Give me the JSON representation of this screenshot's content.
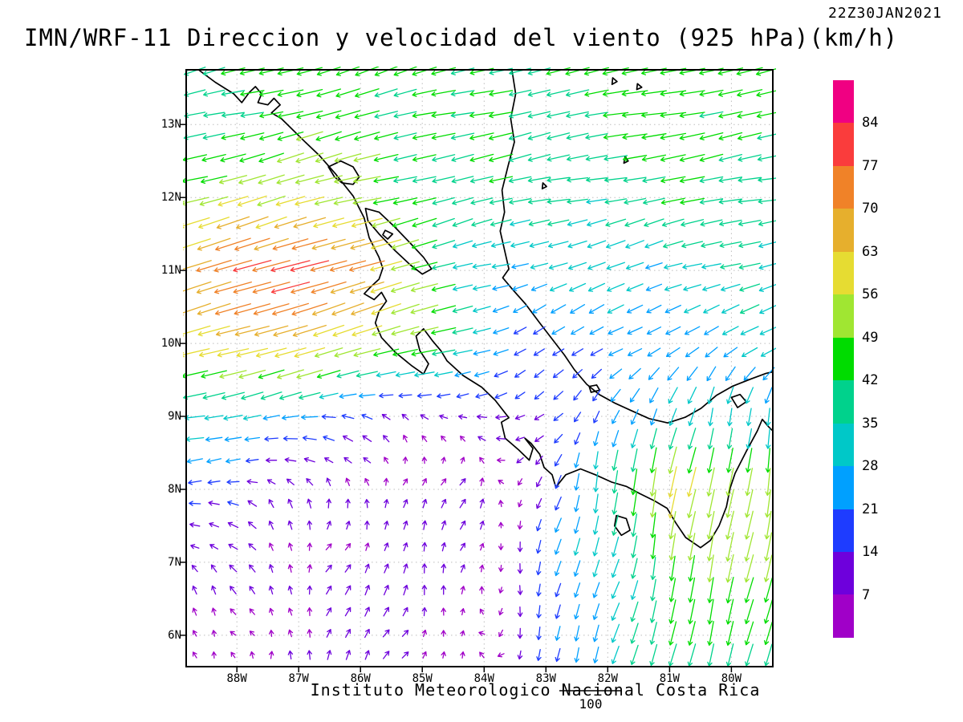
{
  "header": {
    "title": "IMN/WRF-11 Direccion y velocidad del viento (925 hPa)(km/h)",
    "timestamp": "22Z30JAN2021"
  },
  "footer": {
    "credit": "Instituto Meteorologico Nacional Costa Rica",
    "reference_label": "100"
  },
  "axes": {
    "lat_labels": [
      "13N",
      "12N",
      "11N",
      "10N",
      "9N",
      "8N",
      "7N",
      "6N"
    ],
    "lat_values": [
      13,
      12,
      11,
      10,
      9,
      8,
      7,
      6
    ],
    "lon_labels": [
      "88W",
      "87W",
      "86W",
      "85W",
      "84W",
      "83W",
      "82W",
      "81W",
      "80W"
    ],
    "lon_values": [
      -88,
      -87,
      -86,
      -85,
      -84,
      -83,
      -82,
      -81,
      -80
    ],
    "lon_range": [
      -88.82,
      -79.33
    ],
    "lat_range": [
      5.57,
      13.75
    ]
  },
  "colorbar": {
    "labels": [
      "84",
      "77",
      "70",
      "63",
      "56",
      "49",
      "42",
      "35",
      "28",
      "21",
      "14",
      "7"
    ]
  },
  "chart_data": {
    "type": "quiver",
    "title": "IMN/WRF-11 Direccion y velocidad del viento (925 hPa)(km/h)",
    "valid_time": "22Z30JAN2021",
    "units": "km/h",
    "level_hpa": 925,
    "legend_position": "right",
    "speed_levels": [
      7,
      14,
      21,
      28,
      35,
      42,
      49,
      56,
      63,
      70,
      77,
      84
    ],
    "palette_low_to_high": [
      "#a000c8",
      "#6e00dc",
      "#1e3cff",
      "#00a0ff",
      "#00c8c8",
      "#00d28c",
      "#00dc00",
      "#a0e632",
      "#e6dc32",
      "#e6af2d",
      "#f08228",
      "#fa3c3c",
      "#f00082"
    ],
    "reference_arrow_kmh": 100,
    "grid": {
      "lons": [
        -89,
        -88,
        -87,
        -86,
        -85,
        -84,
        -83,
        -82,
        -81,
        -80,
        -79
      ],
      "lats_top_to_bottom": [
        14,
        13,
        12,
        11,
        10,
        9,
        8,
        7,
        6,
        5
      ],
      "uv": [
        [
          [
            -40,
            -10
          ],
          [
            -42,
            -10
          ],
          [
            -44,
            -12
          ],
          [
            -42,
            -12
          ],
          [
            -40,
            -12
          ],
          [
            -40,
            -10
          ],
          [
            -42,
            -8
          ],
          [
            -44,
            -8
          ],
          [
            -48,
            -10
          ],
          [
            -46,
            -10
          ],
          [
            -44,
            -10
          ]
        ],
        [
          [
            -36,
            -8
          ],
          [
            -40,
            -9
          ],
          [
            -44,
            -11
          ],
          [
            -45,
            -12
          ],
          [
            -42,
            -10
          ],
          [
            -40,
            -8
          ],
          [
            -40,
            -8
          ],
          [
            -42,
            -8
          ],
          [
            -44,
            -8
          ],
          [
            -44,
            -8
          ],
          [
            -42,
            -8
          ]
        ],
        [
          [
            -45,
            -12
          ],
          [
            -55,
            -16
          ],
          [
            -54,
            -15
          ],
          [
            -48,
            -13
          ],
          [
            -42,
            -10
          ],
          [
            -38,
            -8
          ],
          [
            -36,
            -8
          ],
          [
            -38,
            -7
          ],
          [
            -40,
            -7
          ],
          [
            -40,
            -7
          ],
          [
            -38,
            -7
          ]
        ],
        [
          [
            -62,
            -18
          ],
          [
            -72,
            -22
          ],
          [
            -80,
            -24
          ],
          [
            -70,
            -20
          ],
          [
            -45,
            -12
          ],
          [
            -30,
            -8
          ],
          [
            -26,
            -10
          ],
          [
            -28,
            -10
          ],
          [
            -30,
            -10
          ],
          [
            -32,
            -10
          ],
          [
            -32,
            -10
          ]
        ],
        [
          [
            -60,
            -17
          ],
          [
            -62,
            -18
          ],
          [
            -60,
            -18
          ],
          [
            -55,
            -16
          ],
          [
            -50,
            -15
          ],
          [
            -26,
            -8
          ],
          [
            -16,
            -8
          ],
          [
            -18,
            -12
          ],
          [
            -22,
            -14
          ],
          [
            -25,
            -12
          ],
          [
            -28,
            -11
          ]
        ],
        [
          [
            -35,
            -6
          ],
          [
            -32,
            -5
          ],
          [
            -25,
            -3
          ],
          [
            -12,
            2
          ],
          [
            -8,
            4
          ],
          [
            -8,
            2
          ],
          [
            -12,
            -10
          ],
          [
            -10,
            -20
          ],
          [
            -8,
            -26
          ],
          [
            -6,
            -30
          ],
          [
            -5,
            -32
          ]
        ],
        [
          [
            -16,
            0
          ],
          [
            -12,
            2
          ],
          [
            -6,
            6
          ],
          [
            2,
            8
          ],
          [
            4,
            8
          ],
          [
            2,
            6
          ],
          [
            -4,
            -15
          ],
          [
            -6,
            -35
          ],
          [
            -12,
            -62
          ],
          [
            -10,
            -55
          ],
          [
            -6,
            -48
          ]
        ],
        [
          [
            -8,
            4
          ],
          [
            -5,
            6
          ],
          [
            0,
            8
          ],
          [
            4,
            10
          ],
          [
            4,
            8
          ],
          [
            0,
            5
          ],
          [
            -5,
            -18
          ],
          [
            -8,
            -30
          ],
          [
            -8,
            -45
          ],
          [
            -10,
            -50
          ],
          [
            -10,
            -48
          ]
        ],
        [
          [
            -5,
            3
          ],
          [
            -3,
            5
          ],
          [
            2,
            8
          ],
          [
            4,
            8
          ],
          [
            3,
            6
          ],
          [
            0,
            4
          ],
          [
            -5,
            -20
          ],
          [
            -8,
            -28
          ],
          [
            -10,
            -38
          ],
          [
            -12,
            -42
          ],
          [
            -12,
            -40
          ]
        ],
        [
          [
            -4,
            3
          ],
          [
            -2,
            4
          ],
          [
            2,
            6
          ],
          [
            3,
            6
          ],
          [
            2,
            5
          ],
          [
            0,
            4
          ],
          [
            -5,
            -18
          ],
          [
            -8,
            -26
          ],
          [
            -10,
            -36
          ],
          [
            -12,
            -40
          ],
          [
            -12,
            -38
          ]
        ]
      ]
    }
  },
  "map": {
    "coastlines": [
      [
        [
          -88.62,
          13.75
        ],
        [
          -88.35,
          13.58
        ],
        [
          -88.05,
          13.42
        ],
        [
          -87.92,
          13.3
        ],
        [
          -87.8,
          13.44
        ],
        [
          -87.7,
          13.52
        ],
        [
          -87.6,
          13.42
        ],
        [
          -87.66,
          13.3
        ],
        [
          -87.5,
          13.27
        ],
        [
          -87.4,
          13.36
        ],
        [
          -87.3,
          13.27
        ],
        [
          -87.44,
          13.16
        ],
        [
          -87.28,
          13.08
        ],
        [
          -87.16,
          12.98
        ],
        [
          -86.92,
          12.78
        ],
        [
          -86.66,
          12.57
        ],
        [
          -86.4,
          12.32
        ],
        [
          -86.12,
          12.02
        ],
        [
          -85.94,
          11.72
        ],
        [
          -85.86,
          11.45
        ],
        [
          -85.7,
          11.18
        ],
        [
          -85.64,
          11.03
        ],
        [
          -85.7,
          10.88
        ],
        [
          -85.84,
          10.77
        ],
        [
          -85.94,
          10.68
        ],
        [
          -85.78,
          10.6
        ],
        [
          -85.66,
          10.7
        ],
        [
          -85.58,
          10.58
        ],
        [
          -85.7,
          10.44
        ],
        [
          -85.76,
          10.28
        ],
        [
          -85.66,
          10.08
        ],
        [
          -85.44,
          9.88
        ],
        [
          -85.18,
          9.7
        ],
        [
          -84.98,
          9.58
        ],
        [
          -84.9,
          9.72
        ],
        [
          -85.04,
          9.9
        ],
        [
          -85.1,
          10.1
        ],
        [
          -84.98,
          10.2
        ],
        [
          -84.84,
          10.04
        ],
        [
          -84.7,
          9.9
        ],
        [
          -84.6,
          9.76
        ],
        [
          -84.34,
          9.56
        ],
        [
          -84.04,
          9.4
        ],
        [
          -83.82,
          9.22
        ],
        [
          -83.6,
          8.98
        ],
        [
          -83.72,
          8.92
        ],
        [
          -83.66,
          8.7
        ],
        [
          -83.44,
          8.54
        ],
        [
          -83.27,
          8.4
        ],
        [
          -83.21,
          8.56
        ],
        [
          -83.34,
          8.7
        ],
        [
          -83.24,
          8.63
        ],
        [
          -83.1,
          8.48
        ],
        [
          -83.03,
          8.3
        ],
        [
          -82.9,
          8.2
        ],
        [
          -82.84,
          8.03
        ],
        [
          -82.68,
          8.2
        ],
        [
          -82.44,
          8.28
        ],
        [
          -82.2,
          8.2
        ],
        [
          -81.94,
          8.1
        ],
        [
          -81.7,
          8.04
        ],
        [
          -81.48,
          7.94
        ],
        [
          -81.24,
          7.84
        ],
        [
          -81.04,
          7.74
        ],
        [
          -80.9,
          7.54
        ],
        [
          -80.74,
          7.34
        ],
        [
          -80.5,
          7.2
        ],
        [
          -80.34,
          7.3
        ],
        [
          -80.2,
          7.5
        ],
        [
          -80.08,
          7.76
        ],
        [
          -80.02,
          8.02
        ],
        [
          -79.94,
          8.22
        ],
        [
          -79.76,
          8.52
        ],
        [
          -79.58,
          8.8
        ],
        [
          -79.5,
          8.96
        ],
        [
          -79.4,
          8.86
        ],
        [
          -79.33,
          8.8
        ]
      ],
      [
        [
          -83.55,
          13.75
        ],
        [
          -83.49,
          13.42
        ],
        [
          -83.57,
          13.08
        ],
        [
          -83.51,
          12.76
        ],
        [
          -83.61,
          12.44
        ],
        [
          -83.71,
          12.1
        ],
        [
          -83.67,
          11.8
        ],
        [
          -83.74,
          11.54
        ],
        [
          -83.67,
          11.28
        ],
        [
          -83.6,
          11.02
        ],
        [
          -83.7,
          10.9
        ],
        [
          -83.54,
          10.74
        ],
        [
          -83.33,
          10.54
        ],
        [
          -83.1,
          10.28
        ],
        [
          -82.9,
          10.06
        ],
        [
          -82.7,
          9.84
        ],
        [
          -82.54,
          9.64
        ],
        [
          -82.34,
          9.44
        ],
        [
          -82.14,
          9.3
        ],
        [
          -81.88,
          9.18
        ],
        [
          -81.62,
          9.08
        ],
        [
          -81.33,
          8.97
        ],
        [
          -81.03,
          8.91
        ],
        [
          -80.74,
          8.99
        ],
        [
          -80.49,
          9.11
        ],
        [
          -80.24,
          9.29
        ],
        [
          -79.99,
          9.41
        ],
        [
          -79.69,
          9.51
        ],
        [
          -79.44,
          9.59
        ],
        [
          -79.33,
          9.61
        ]
      ]
    ],
    "lakes": [
      [
        [
          -86.52,
          12.42
        ],
        [
          -86.32,
          12.5
        ],
        [
          -86.12,
          12.42
        ],
        [
          -86.02,
          12.28
        ],
        [
          -86.12,
          12.18
        ],
        [
          -86.3,
          12.2
        ],
        [
          -86.42,
          12.28
        ]
      ],
      [
        [
          -85.92,
          11.85
        ],
        [
          -85.7,
          11.8
        ],
        [
          -85.45,
          11.6
        ],
        [
          -85.2,
          11.38
        ],
        [
          -84.98,
          11.18
        ],
        [
          -84.85,
          11.02
        ],
        [
          -85.0,
          10.95
        ],
        [
          -85.2,
          11.08
        ],
        [
          -85.45,
          11.28
        ],
        [
          -85.7,
          11.5
        ],
        [
          -85.88,
          11.68
        ]
      ],
      [
        [
          -80.0,
          9.26
        ],
        [
          -79.86,
          9.3
        ],
        [
          -79.76,
          9.2
        ],
        [
          -79.9,
          9.12
        ]
      ]
    ],
    "islands": [
      [
        [
          -85.6,
          11.55
        ],
        [
          -85.48,
          11.5
        ],
        [
          -85.56,
          11.43
        ],
        [
          -85.64,
          11.49
        ]
      ],
      [
        [
          -81.86,
          7.64
        ],
        [
          -81.7,
          7.6
        ],
        [
          -81.64,
          7.44
        ],
        [
          -81.78,
          7.37
        ],
        [
          -81.89,
          7.5
        ]
      ],
      [
        [
          -82.3,
          9.41
        ],
        [
          -82.18,
          9.43
        ],
        [
          -82.13,
          9.36
        ],
        [
          -82.27,
          9.33
        ]
      ],
      [
        [
          -81.92,
          13.64
        ],
        [
          -81.85,
          13.59
        ],
        [
          -81.93,
          13.55
        ]
      ],
      [
        [
          -81.52,
          13.56
        ],
        [
          -81.45,
          13.51
        ],
        [
          -81.53,
          13.48
        ]
      ],
      [
        [
          -81.72,
          12.56
        ],
        [
          -81.67,
          12.5
        ],
        [
          -81.74,
          12.47
        ]
      ],
      [
        [
          -83.05,
          12.2
        ],
        [
          -82.99,
          12.15
        ],
        [
          -83.06,
          12.12
        ]
      ]
    ]
  }
}
